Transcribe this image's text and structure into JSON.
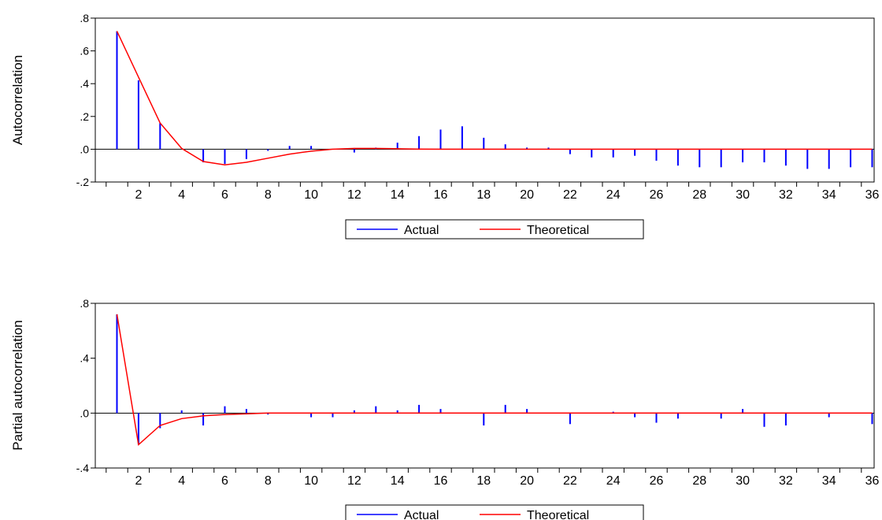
{
  "chart_data": [
    {
      "type": "bar",
      "ylabel": "Autocorrelation",
      "ylim": [
        -0.2,
        0.8
      ],
      "yticks": [
        -0.2,
        0.0,
        0.2,
        0.4,
        0.6,
        0.8
      ],
      "ytick_labels": [
        "-.2",
        ".0",
        ".2",
        ".4",
        ".6",
        ".8"
      ],
      "x": [
        1,
        2,
        3,
        4,
        5,
        6,
        7,
        8,
        9,
        10,
        11,
        12,
        13,
        14,
        15,
        16,
        17,
        18,
        19,
        20,
        21,
        22,
        23,
        24,
        25,
        26,
        27,
        28,
        29,
        30,
        31,
        32,
        33,
        34,
        35,
        36
      ],
      "xtick_labels": [
        "2",
        "4",
        "6",
        "8",
        "10",
        "12",
        "14",
        "16",
        "18",
        "20",
        "22",
        "24",
        "26",
        "28",
        "30",
        "32",
        "34",
        "36"
      ],
      "series": [
        {
          "name": "Actual",
          "color": "#0000ff",
          "values": [
            0.72,
            0.42,
            0.16,
            0.0,
            -0.08,
            -0.09,
            -0.06,
            -0.01,
            0.02,
            0.02,
            0.0,
            -0.02,
            0.01,
            0.04,
            0.08,
            0.12,
            0.14,
            0.07,
            0.03,
            0.01,
            0.01,
            -0.03,
            -0.05,
            -0.05,
            -0.04,
            -0.07,
            -0.1,
            -0.11,
            -0.11,
            -0.08,
            -0.08,
            -0.1,
            -0.12,
            -0.12,
            -0.11,
            -0.11
          ]
        },
        {
          "name": "Theoretical",
          "color": "#ff0000",
          "values": [
            0.72,
            0.44,
            0.16,
            0.005,
            -0.075,
            -0.095,
            -0.08,
            -0.055,
            -0.03,
            -0.012,
            0.0,
            0.005,
            0.005,
            0.003,
            0.001,
            0.0,
            0.0,
            0.0,
            0.0,
            0.0,
            0.0,
            0.0,
            0.0,
            0.0,
            0.0,
            0.0,
            0.0,
            0.0,
            0.0,
            0.0,
            0.0,
            0.0,
            0.0,
            0.0,
            0.0,
            0.0
          ]
        }
      ],
      "legend": "bottom-center"
    },
    {
      "type": "bar",
      "ylabel": "Partial autocorrelation",
      "ylim": [
        -0.4,
        0.8
      ],
      "yticks": [
        -0.4,
        0.0,
        0.4,
        0.8
      ],
      "ytick_labels": [
        "-.4",
        ".0",
        ".4",
        ".8"
      ],
      "x": [
        1,
        2,
        3,
        4,
        5,
        6,
        7,
        8,
        9,
        10,
        11,
        12,
        13,
        14,
        15,
        16,
        17,
        18,
        19,
        20,
        21,
        22,
        23,
        24,
        25,
        26,
        27,
        28,
        29,
        30,
        31,
        32,
        33,
        34,
        35,
        36
      ],
      "xtick_labels": [
        "2",
        "4",
        "6",
        "8",
        "10",
        "12",
        "14",
        "16",
        "18",
        "20",
        "22",
        "24",
        "26",
        "28",
        "30",
        "32",
        "34",
        "36"
      ],
      "series": [
        {
          "name": "Actual",
          "color": "#0000ff",
          "values": [
            0.72,
            -0.23,
            -0.11,
            0.02,
            -0.09,
            0.05,
            0.03,
            -0.01,
            0.0,
            -0.03,
            -0.03,
            0.02,
            0.05,
            0.02,
            0.06,
            0.03,
            0.0,
            -0.09,
            0.06,
            0.03,
            0.0,
            -0.08,
            0.0,
            0.01,
            -0.03,
            -0.07,
            -0.04,
            0.0,
            -0.04,
            0.03,
            -0.1,
            -0.09,
            0.0,
            -0.03,
            0.0,
            -0.08
          ]
        },
        {
          "name": "Theoretical",
          "color": "#ff0000",
          "values": [
            0.72,
            -0.23,
            -0.09,
            -0.04,
            -0.02,
            -0.01,
            -0.005,
            0.0,
            0.0,
            0.0,
            0.0,
            0.0,
            0.0,
            0.0,
            0.0,
            0.0,
            0.0,
            0.0,
            0.0,
            0.0,
            0.0,
            0.0,
            0.0,
            0.0,
            0.0,
            0.0,
            0.0,
            0.0,
            0.0,
            0.0,
            0.0,
            0.0,
            0.0,
            0.0,
            0.0,
            0.0
          ]
        }
      ],
      "legend": "bottom-center"
    }
  ]
}
